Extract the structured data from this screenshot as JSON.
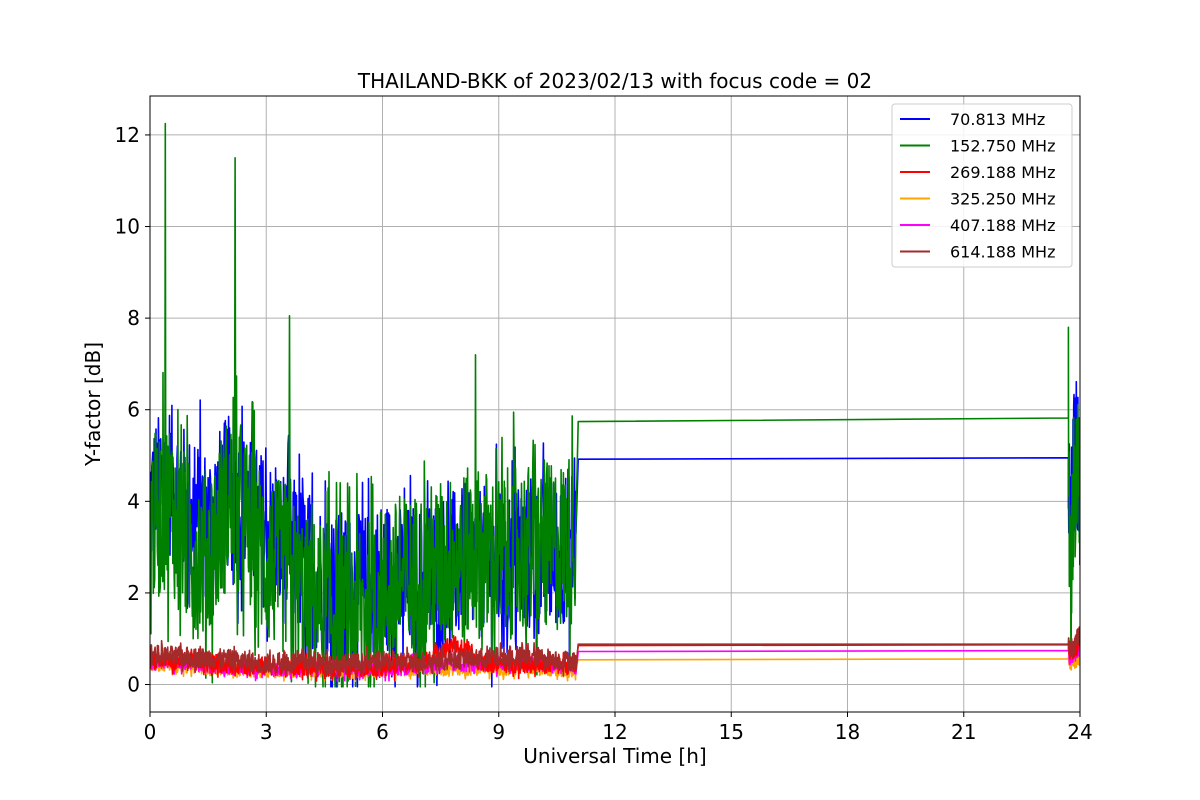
{
  "chart_data": {
    "type": "line",
    "title": "THAILAND-BKK of 2023/02/13 with focus code = 02",
    "xlabel": "Universal Time [h]",
    "ylabel": "Y-factor [dB]",
    "xlim": [
      0,
      24
    ],
    "ylim": [
      -0.6,
      12.85
    ],
    "xticks": [
      0,
      3,
      6,
      9,
      12,
      15,
      18,
      21,
      24
    ],
    "yticks": [
      0,
      2,
      4,
      6,
      8,
      10,
      12
    ],
    "xtick_labels": [
      "0",
      "3",
      "6",
      "9",
      "12",
      "15",
      "18",
      "21",
      "24"
    ],
    "ytick_labels": [
      "0",
      "2",
      "4",
      "6",
      "8",
      "10",
      "12"
    ],
    "grid": true,
    "legend_position": "top-right",
    "series": [
      {
        "name": " 70.813 MHz",
        "color": "#0000ff",
        "x": [
          0,
          0.5,
          1,
          1.5,
          2,
          2.5,
          3,
          3.5,
          4,
          4.5,
          5,
          5.5,
          6,
          6.5,
          7,
          7.5,
          8,
          8.5,
          9,
          9.5,
          10,
          10.5,
          11,
          11.05,
          23.7,
          23.75,
          23.85,
          24
        ],
        "y": [
          4.0,
          4.5,
          3.8,
          3.5,
          4.2,
          3.8,
          3.3,
          3.0,
          2.6,
          2.3,
          2.1,
          2.0,
          2.4,
          2.2,
          2.3,
          2.5,
          2.6,
          2.7,
          2.6,
          2.8,
          2.7,
          2.9,
          3.2,
          4.92,
          4.95,
          3.2,
          5.0,
          5.0
        ],
        "noise": 1.7
      },
      {
        "name": "152.750 MHz",
        "color": "#008000",
        "x": [
          0,
          0.5,
          1,
          1.5,
          2,
          2.5,
          3,
          3.5,
          4,
          4.5,
          5,
          5.5,
          6,
          6.5,
          7,
          7.5,
          8,
          8.5,
          9,
          9.5,
          10,
          10.5,
          11,
          11.05,
          23.7,
          23.75,
          23.85,
          24
        ],
        "y": [
          3.5,
          4.0,
          3.0,
          2.8,
          4.0,
          3.5,
          2.7,
          2.5,
          1.8,
          1.7,
          1.5,
          1.6,
          2.0,
          2.2,
          2.4,
          2.6,
          2.8,
          2.9,
          2.7,
          3.0,
          2.9,
          3.0,
          3.3,
          5.74,
          5.82,
          1.8,
          4.5,
          4.5
        ],
        "noise": 1.9,
        "peaks": [
          {
            "x": 0.4,
            "y": 12.25
          },
          {
            "x": 2.2,
            "y": 11.5
          },
          {
            "x": 3.6,
            "y": 8.05
          },
          {
            "x": 8.4,
            "y": 7.2
          },
          {
            "x": 23.7,
            "y": 7.8
          }
        ]
      },
      {
        "name": "269.188 MHz",
        "color": "#ff0000",
        "x": [
          0,
          1,
          2,
          3,
          4,
          5,
          6,
          7,
          7.8,
          8.5,
          9,
          10,
          11,
          11.05,
          23.7,
          23.75,
          24
        ],
        "y": [
          0.55,
          0.5,
          0.45,
          0.4,
          0.4,
          0.35,
          0.4,
          0.45,
          0.9,
          0.5,
          0.45,
          0.45,
          0.4,
          0.85,
          0.87,
          0.7,
          0.9
        ],
        "noise": 0.2
      },
      {
        "name": "325.250 MHz",
        "color": "#ffa500",
        "x": [
          0,
          1,
          2,
          3,
          4,
          5,
          6,
          7,
          8,
          9,
          10,
          11,
          11.05,
          23.7,
          23.75,
          24
        ],
        "y": [
          0.45,
          0.4,
          0.35,
          0.3,
          0.3,
          0.3,
          0.3,
          0.35,
          0.35,
          0.35,
          0.35,
          0.3,
          0.54,
          0.56,
          0.4,
          0.6
        ],
        "noise": 0.15
      },
      {
        "name": "407.188 MHz",
        "color": "#ff00ff",
        "x": [
          0,
          1,
          2,
          3,
          4,
          5,
          6,
          7,
          8,
          9,
          10,
          11,
          11.05,
          23.7,
          23.75,
          24
        ],
        "y": [
          0.5,
          0.45,
          0.4,
          0.35,
          0.35,
          0.35,
          0.35,
          0.4,
          0.45,
          0.45,
          0.45,
          0.4,
          0.72,
          0.74,
          0.55,
          0.8
        ],
        "noise": 0.18
      },
      {
        "name": "614.188 MHz",
        "color": "#a52a2a",
        "x": [
          0,
          1,
          2,
          3,
          4,
          5,
          6,
          7,
          8,
          9,
          10,
          11,
          11.05,
          23.7,
          23.75,
          24
        ],
        "y": [
          0.65,
          0.6,
          0.55,
          0.45,
          0.5,
          0.45,
          0.5,
          0.5,
          0.55,
          0.6,
          0.6,
          0.5,
          0.88,
          0.88,
          0.75,
          1.1
        ],
        "noise": 0.22
      }
    ]
  }
}
